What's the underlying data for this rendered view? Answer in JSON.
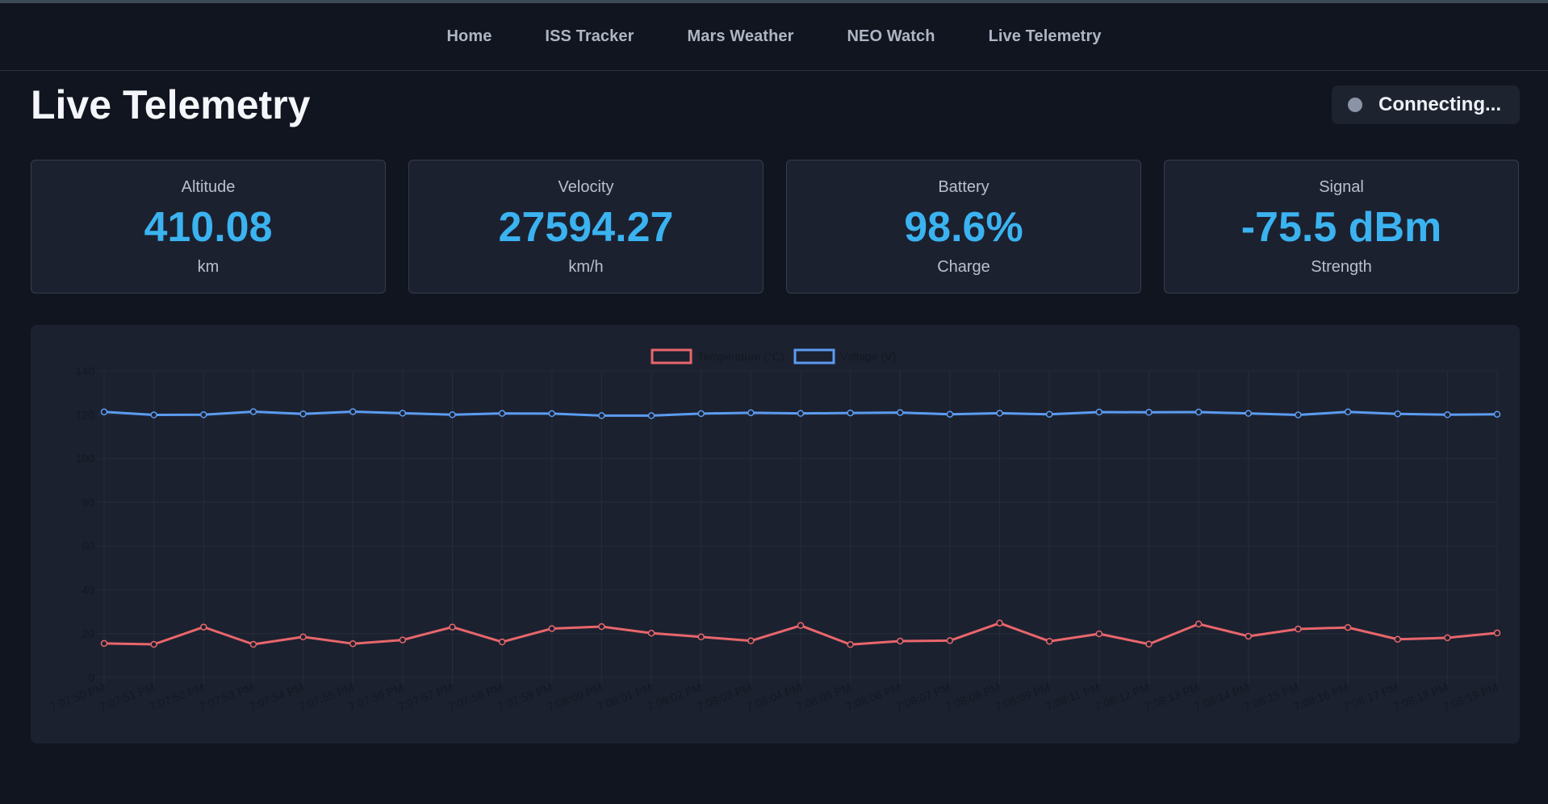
{
  "nav": {
    "items": [
      "Home",
      "ISS Tracker",
      "Mars Weather",
      "NEO Watch",
      "Live Telemetry"
    ]
  },
  "page": {
    "title": "Live Telemetry",
    "status_text": "Connecting..."
  },
  "cards": [
    {
      "label": "Altitude",
      "value": "410.08",
      "unit": "km"
    },
    {
      "label": "Velocity",
      "value": "27594.27",
      "unit": "km/h"
    },
    {
      "label": "Battery",
      "value": "98.6%",
      "unit": "Charge"
    },
    {
      "label": "Signal",
      "value": "-75.5 dBm",
      "unit": "Strength"
    }
  ],
  "colors": {
    "accent": "#3bb3f0",
    "temperature": "#e8666b",
    "voltage": "#5b9cf0",
    "status_dot": "#8a94a6"
  },
  "chart_data": {
    "type": "line",
    "title": "",
    "xlabel": "",
    "ylabel": "",
    "ylim": [
      0,
      140
    ],
    "yticks": [
      0,
      20,
      40,
      60,
      80,
      100,
      120,
      140
    ],
    "grid": true,
    "legend_position": "top",
    "x": [
      "7:07:50 PM",
      "7:07:51 PM",
      "7:07:52 PM",
      "7:07:53 PM",
      "7:07:54 PM",
      "7:07:55 PM",
      "7:07:56 PM",
      "7:07:57 PM",
      "7:07:58 PM",
      "7:07:59 PM",
      "7:08:00 PM",
      "7:08:01 PM",
      "7:08:02 PM",
      "7:08:03 PM",
      "7:08:04 PM",
      "7:08:05 PM",
      "7:08:06 PM",
      "7:08:07 PM",
      "7:08:08 PM",
      "7:08:09 PM",
      "7:08:11 PM",
      "7:08:12 PM",
      "7:08:13 PM",
      "7:08:14 PM",
      "7:08:15 PM",
      "7:08:16 PM",
      "7:08:17 PM",
      "7:08:18 PM",
      "7:08:19 PM"
    ],
    "series": [
      {
        "name": "Temperature (°C)",
        "color": "#e8666b",
        "values": [
          15.5,
          15.1,
          23.0,
          15.1,
          18.5,
          15.4,
          17.1,
          23.0,
          16.2,
          22.3,
          23.2,
          20.2,
          18.5,
          16.7,
          23.7,
          15.0,
          16.6,
          16.8,
          24.8,
          16.5,
          19.9,
          15.2,
          24.4,
          18.8,
          22.1,
          22.8,
          17.4,
          18.1,
          20.3
        ]
      },
      {
        "name": "Voltage (V)",
        "color": "#5b9cf0",
        "values": [
          121.3,
          119.9,
          120.0,
          121.4,
          120.4,
          121.4,
          120.7,
          120.0,
          120.6,
          120.5,
          119.6,
          119.6,
          120.5,
          120.9,
          120.6,
          120.8,
          121.0,
          120.2,
          120.7,
          120.2,
          121.2,
          121.1,
          121.2,
          120.6,
          119.9,
          121.3,
          120.4,
          120.0,
          120.2
        ]
      }
    ]
  }
}
